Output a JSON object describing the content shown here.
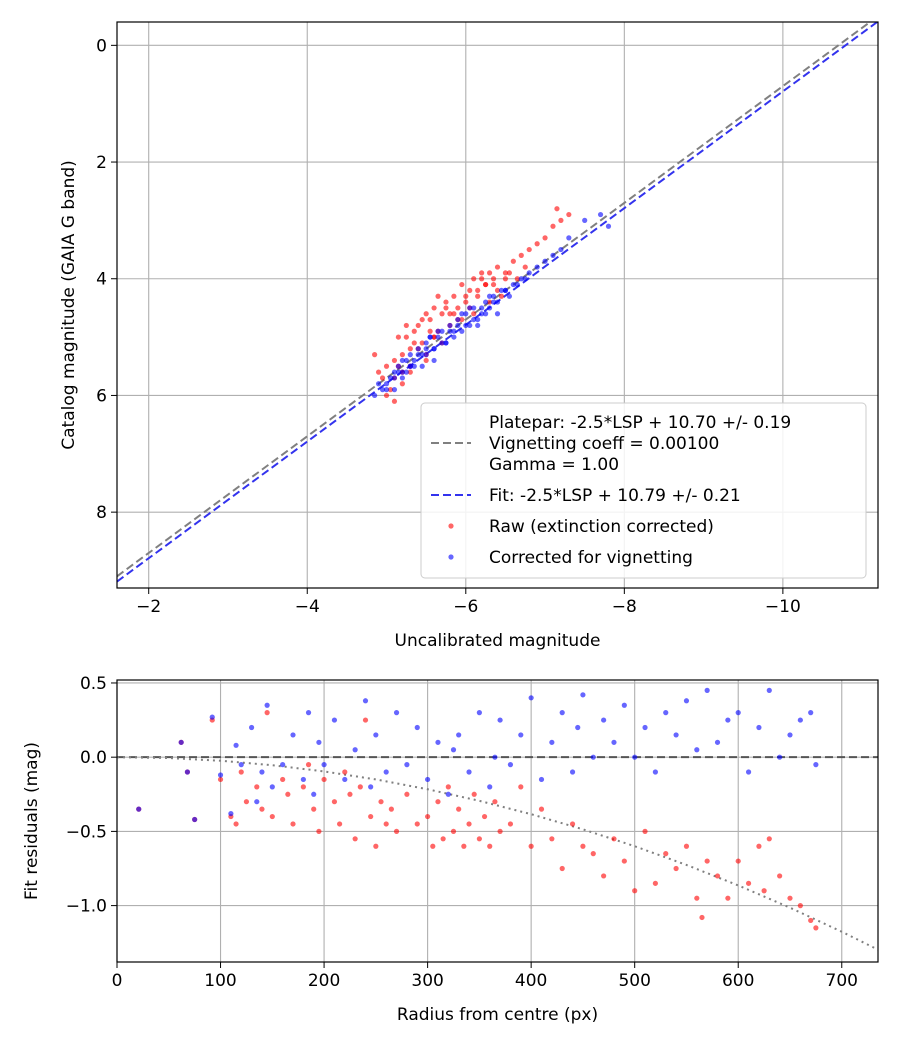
{
  "colors": {
    "raw": "#ff0000",
    "corrected": "#0000ff",
    "platepar_line": "#808080",
    "fit_line": "#3333ee",
    "grid": "#b0b0b0",
    "frame": "#000000"
  },
  "chart_data": [
    {
      "type": "scatter",
      "xlabel": "Uncalibrated magnitude",
      "ylabel": "Catalog magnitude (GAIA G band)",
      "xlim": [
        -1.6,
        -11.2
      ],
      "ylim": [
        9.3,
        -0.4
      ],
      "x_inverted": true,
      "y_inverted": true,
      "grid": true,
      "x_ticks": [
        -2,
        -4,
        -6,
        -8,
        -10
      ],
      "x_tick_labels": [
        "−2",
        "−4",
        "−6",
        "−8",
        "−10"
      ],
      "y_ticks": [
        0,
        2,
        4,
        6,
        8
      ],
      "y_tick_labels": [
        "0",
        "2",
        "4",
        "6",
        "8"
      ],
      "lines": [
        {
          "name": "Platepar",
          "style": "dashed",
          "color": "#808080",
          "slope": 1,
          "intercept": 10.7,
          "x_range": [
            -1.6,
            -11.2
          ]
        },
        {
          "name": "Fit",
          "style": "dashed",
          "color": "#3333ee",
          "slope": 1,
          "intercept": 10.79,
          "x_range": [
            -1.6,
            -11.2
          ]
        }
      ],
      "series": [
        {
          "name": "Raw (extinction corrected)",
          "color": "#ff0000",
          "x": [
            -4.85,
            -4.9,
            -5.0,
            -5.05,
            -5.1,
            -5.1,
            -5.15,
            -5.2,
            -5.2,
            -5.25,
            -5.3,
            -5.3,
            -5.35,
            -5.4,
            -5.45,
            -5.5,
            -5.5,
            -5.55,
            -5.6,
            -5.6,
            -5.65,
            -5.7,
            -5.75,
            -5.8,
            -5.85,
            -5.9,
            -5.95,
            -6.0,
            -6.05,
            -6.1,
            -6.15,
            -6.2,
            -6.25,
            -6.3,
            -6.35,
            -6.4,
            -6.5,
            -6.6,
            -6.7,
            -6.8,
            -6.9,
            -7.0,
            -7.1,
            -7.15,
            -7.2,
            -7.3,
            -5.0,
            -5.2,
            -5.4,
            -5.6,
            -5.8,
            -6.0,
            -6.2,
            -6.4,
            -5.1,
            -5.3,
            -5.5,
            -5.7,
            -5.9,
            -6.1,
            -6.3,
            -6.5,
            -4.95,
            -5.15,
            -5.35,
            -5.55,
            -5.75,
            -5.95,
            -6.15,
            -6.35,
            -6.55,
            -6.75,
            -5.25,
            -5.45,
            -5.65,
            -5.85,
            -6.05,
            -6.25,
            -6.45,
            -6.65
          ],
          "y": [
            5.3,
            5.6,
            5.5,
            5.9,
            5.4,
            5.7,
            5.0,
            5.3,
            5.8,
            4.8,
            5.2,
            5.5,
            4.9,
            4.8,
            5.1,
            4.6,
            5.3,
            4.7,
            4.5,
            5.0,
            4.9,
            4.6,
            4.4,
            4.8,
            4.3,
            4.5,
            4.1,
            4.4,
            4.2,
            4.0,
            4.3,
            3.9,
            4.1,
            3.9,
            4.0,
            3.8,
            3.9,
            3.7,
            3.6,
            3.5,
            3.4,
            3.3,
            3.1,
            2.8,
            3.0,
            2.9,
            6.0,
            5.6,
            5.2,
            5.0,
            4.6,
            4.3,
            4.0,
            4.2,
            6.1,
            5.6,
            5.4,
            5.1,
            4.7,
            4.6,
            4.4,
            4.0,
            5.7,
            5.5,
            5.1,
            4.9,
            4.5,
            4.7,
            4.2,
            4.1,
            3.9,
            3.8,
            5.0,
            4.7,
            4.3,
            4.6,
            4.5,
            4.1,
            4.3,
            4.0
          ]
        },
        {
          "name": "Corrected for vignetting",
          "color": "#0000ff",
          "x": [
            -4.85,
            -4.9,
            -5.0,
            -5.05,
            -5.1,
            -5.1,
            -5.15,
            -5.2,
            -5.2,
            -5.25,
            -5.3,
            -5.3,
            -5.35,
            -5.4,
            -5.45,
            -5.5,
            -5.5,
            -5.55,
            -5.6,
            -5.6,
            -5.65,
            -5.7,
            -5.75,
            -5.8,
            -5.85,
            -5.9,
            -5.95,
            -6.0,
            -6.05,
            -6.1,
            -6.15,
            -6.2,
            -6.25,
            -6.3,
            -6.35,
            -6.4,
            -6.5,
            -6.6,
            -6.7,
            -6.8,
            -6.9,
            -7.0,
            -7.1,
            -7.2,
            -7.3,
            -7.5,
            -7.7,
            -7.8,
            -5.0,
            -5.2,
            -5.4,
            -5.6,
            -5.8,
            -6.0,
            -6.2,
            -6.4,
            -5.1,
            -5.3,
            -5.5,
            -5.7,
            -5.9,
            -6.1,
            -6.3,
            -6.5,
            -4.95,
            -5.15,
            -5.35,
            -5.55,
            -5.75,
            -5.95,
            -6.15,
            -6.35,
            -6.55,
            -6.75,
            -5.25,
            -5.45,
            -5.65,
            -5.85,
            -6.05,
            -6.25,
            -6.45,
            -6.65
          ],
          "y": [
            6.0,
            5.8,
            5.9,
            5.7,
            5.6,
            5.9,
            5.5,
            5.7,
            5.4,
            5.6,
            5.3,
            5.5,
            5.4,
            5.2,
            5.5,
            5.1,
            5.3,
            5.0,
            5.2,
            5.4,
            5.0,
            4.9,
            5.1,
            4.8,
            5.0,
            4.7,
            4.9,
            4.6,
            4.8,
            4.5,
            4.7,
            4.6,
            4.4,
            4.5,
            4.3,
            4.4,
            4.2,
            4.1,
            4.0,
            3.9,
            3.8,
            3.7,
            3.6,
            3.5,
            3.3,
            3.0,
            2.9,
            3.1,
            5.8,
            5.6,
            5.3,
            5.2,
            4.9,
            4.8,
            4.5,
            4.6,
            5.7,
            5.5,
            5.2,
            5.1,
            4.8,
            4.7,
            4.3,
            4.2,
            5.9,
            5.6,
            5.5,
            5.0,
            5.1,
            4.6,
            4.8,
            4.4,
            4.3,
            4.0,
            5.4,
            5.3,
            4.9,
            4.9,
            4.5,
            4.6,
            4.2,
            4.1
          ]
        }
      ],
      "legend": {
        "position": "lower-right",
        "entries": [
          {
            "label_lines": [
              "Platepar: -2.5*LSP + 10.70 +/- 0.19",
              "Vignetting coeff = 0.00100",
              "Gamma = 1.00"
            ],
            "marker": "dashed-line",
            "color": "#808080"
          },
          {
            "label_lines": [
              "Fit: -2.5*LSP + 10.79 +/- 0.21"
            ],
            "marker": "dashed-line",
            "color": "#3333ee"
          },
          {
            "label_lines": [
              "Raw (extinction corrected)"
            ],
            "marker": "dot",
            "color": "#ff0000"
          },
          {
            "label_lines": [
              "Corrected for vignetting"
            ],
            "marker": "dot",
            "color": "#0000ff"
          }
        ]
      }
    },
    {
      "type": "scatter",
      "xlabel": "Radius from centre (px)",
      "ylabel": "Fit residuals (mag)",
      "xlim": [
        0,
        735
      ],
      "ylim": [
        -1.38,
        0.52
      ],
      "grid": true,
      "x_ticks": [
        0,
        100,
        200,
        300,
        400,
        500,
        600,
        700
      ],
      "x_tick_labels": [
        "0",
        "100",
        "200",
        "300",
        "400",
        "500",
        "600",
        "700"
      ],
      "y_ticks": [
        0.5,
        0.0,
        -0.5,
        -1.0
      ],
      "y_tick_labels": [
        "0.5",
        "0.0",
        "−0.5",
        "−1.0"
      ],
      "lines": [
        {
          "name": "zero",
          "style": "dashed",
          "color": "#555555",
          "points": [
            [
              0,
              0
            ],
            [
              735,
              0
            ]
          ]
        },
        {
          "name": "vignetting model",
          "style": "dotted",
          "color": "#808080",
          "points": [
            [
              0,
              0.0
            ],
            [
              50,
              -0.006
            ],
            [
              100,
              -0.024
            ],
            [
              150,
              -0.054
            ],
            [
              200,
              -0.096
            ],
            [
              250,
              -0.15
            ],
            [
              300,
              -0.216
            ],
            [
              350,
              -0.294
            ],
            [
              400,
              -0.384
            ],
            [
              450,
              -0.486
            ],
            [
              500,
              -0.6
            ],
            [
              550,
              -0.726
            ],
            [
              600,
              -0.864
            ],
            [
              650,
              -1.014
            ],
            [
              700,
              -1.176
            ],
            [
              735,
              -1.297
            ]
          ]
        }
      ],
      "series": [
        {
          "name": "Raw (extinction corrected)",
          "color": "#ff0000",
          "x": [
            21,
            62,
            68,
            75,
            92,
            100,
            110,
            115,
            120,
            125,
            135,
            140,
            145,
            150,
            160,
            165,
            170,
            180,
            185,
            190,
            195,
            200,
            210,
            215,
            220,
            225,
            230,
            235,
            240,
            245,
            250,
            255,
            260,
            265,
            270,
            280,
            290,
            300,
            305,
            310,
            315,
            320,
            325,
            330,
            335,
            340,
            345,
            350,
            355,
            360,
            365,
            370,
            380,
            390,
            400,
            410,
            420,
            430,
            440,
            450,
            460,
            470,
            480,
            490,
            500,
            510,
            520,
            530,
            540,
            550,
            560,
            565,
            570,
            580,
            590,
            600,
            610,
            620,
            625,
            630,
            640,
            650,
            660,
            670,
            675
          ],
          "y": [
            -0.35,
            0.1,
            -0.1,
            -0.42,
            0.25,
            -0.15,
            -0.4,
            -0.45,
            -0.1,
            -0.3,
            -0.2,
            -0.35,
            0.3,
            -0.4,
            -0.15,
            -0.25,
            -0.45,
            -0.2,
            -0.05,
            -0.35,
            -0.5,
            -0.15,
            -0.3,
            -0.45,
            -0.1,
            -0.25,
            -0.55,
            -0.2,
            0.25,
            -0.4,
            -0.6,
            -0.3,
            -0.45,
            -0.35,
            -0.5,
            -0.25,
            -0.45,
            -0.4,
            -0.6,
            -0.3,
            -0.55,
            -0.2,
            -0.5,
            -0.35,
            -0.6,
            -0.45,
            -0.25,
            -0.55,
            -0.4,
            -0.6,
            -0.3,
            -0.5,
            -0.45,
            -0.2,
            -0.6,
            -0.35,
            -0.55,
            -0.75,
            -0.45,
            -0.6,
            -0.65,
            -0.8,
            -0.55,
            -0.7,
            -0.9,
            -0.5,
            -0.85,
            -0.65,
            -0.75,
            -0.6,
            -0.95,
            -1.08,
            -0.7,
            -0.8,
            -0.95,
            -0.7,
            -0.85,
            -0.6,
            -0.9,
            -0.55,
            -0.8,
            -0.95,
            -1.0,
            -1.1,
            -1.15
          ]
        },
        {
          "name": "Corrected for vignetting",
          "color": "#0000ff",
          "x": [
            21,
            62,
            68,
            75,
            92,
            100,
            110,
            115,
            120,
            130,
            135,
            140,
            145,
            150,
            160,
            170,
            180,
            185,
            190,
            195,
            200,
            210,
            220,
            230,
            240,
            245,
            250,
            260,
            270,
            280,
            290,
            300,
            310,
            320,
            325,
            330,
            340,
            350,
            360,
            365,
            370,
            380,
            390,
            400,
            410,
            420,
            430,
            440,
            445,
            450,
            460,
            470,
            480,
            490,
            500,
            510,
            520,
            530,
            540,
            550,
            560,
            570,
            580,
            590,
            600,
            610,
            620,
            630,
            640,
            650,
            660,
            670,
            675
          ],
          "y": [
            -0.35,
            0.1,
            -0.1,
            -0.42,
            0.27,
            -0.12,
            -0.38,
            0.08,
            -0.05,
            0.2,
            -0.3,
            -0.1,
            0.35,
            -0.2,
            -0.05,
            0.15,
            -0.15,
            0.3,
            -0.25,
            0.1,
            -0.05,
            0.25,
            -0.15,
            0.05,
            0.38,
            -0.2,
            0.15,
            -0.1,
            0.3,
            -0.05,
            0.2,
            -0.15,
            0.1,
            -0.25,
            0.05,
            0.15,
            -0.1,
            0.3,
            -0.2,
            0.0,
            0.25,
            -0.05,
            0.15,
            0.4,
            -0.15,
            0.1,
            0.3,
            -0.1,
            0.2,
            0.42,
            0.0,
            0.25,
            0.1,
            0.35,
            0.0,
            0.2,
            -0.1,
            0.3,
            0.15,
            0.38,
            0.05,
            0.45,
            0.1,
            0.25,
            0.3,
            -0.1,
            0.2,
            0.45,
            0.0,
            0.15,
            0.25,
            0.3,
            -0.05
          ]
        }
      ]
    }
  ]
}
